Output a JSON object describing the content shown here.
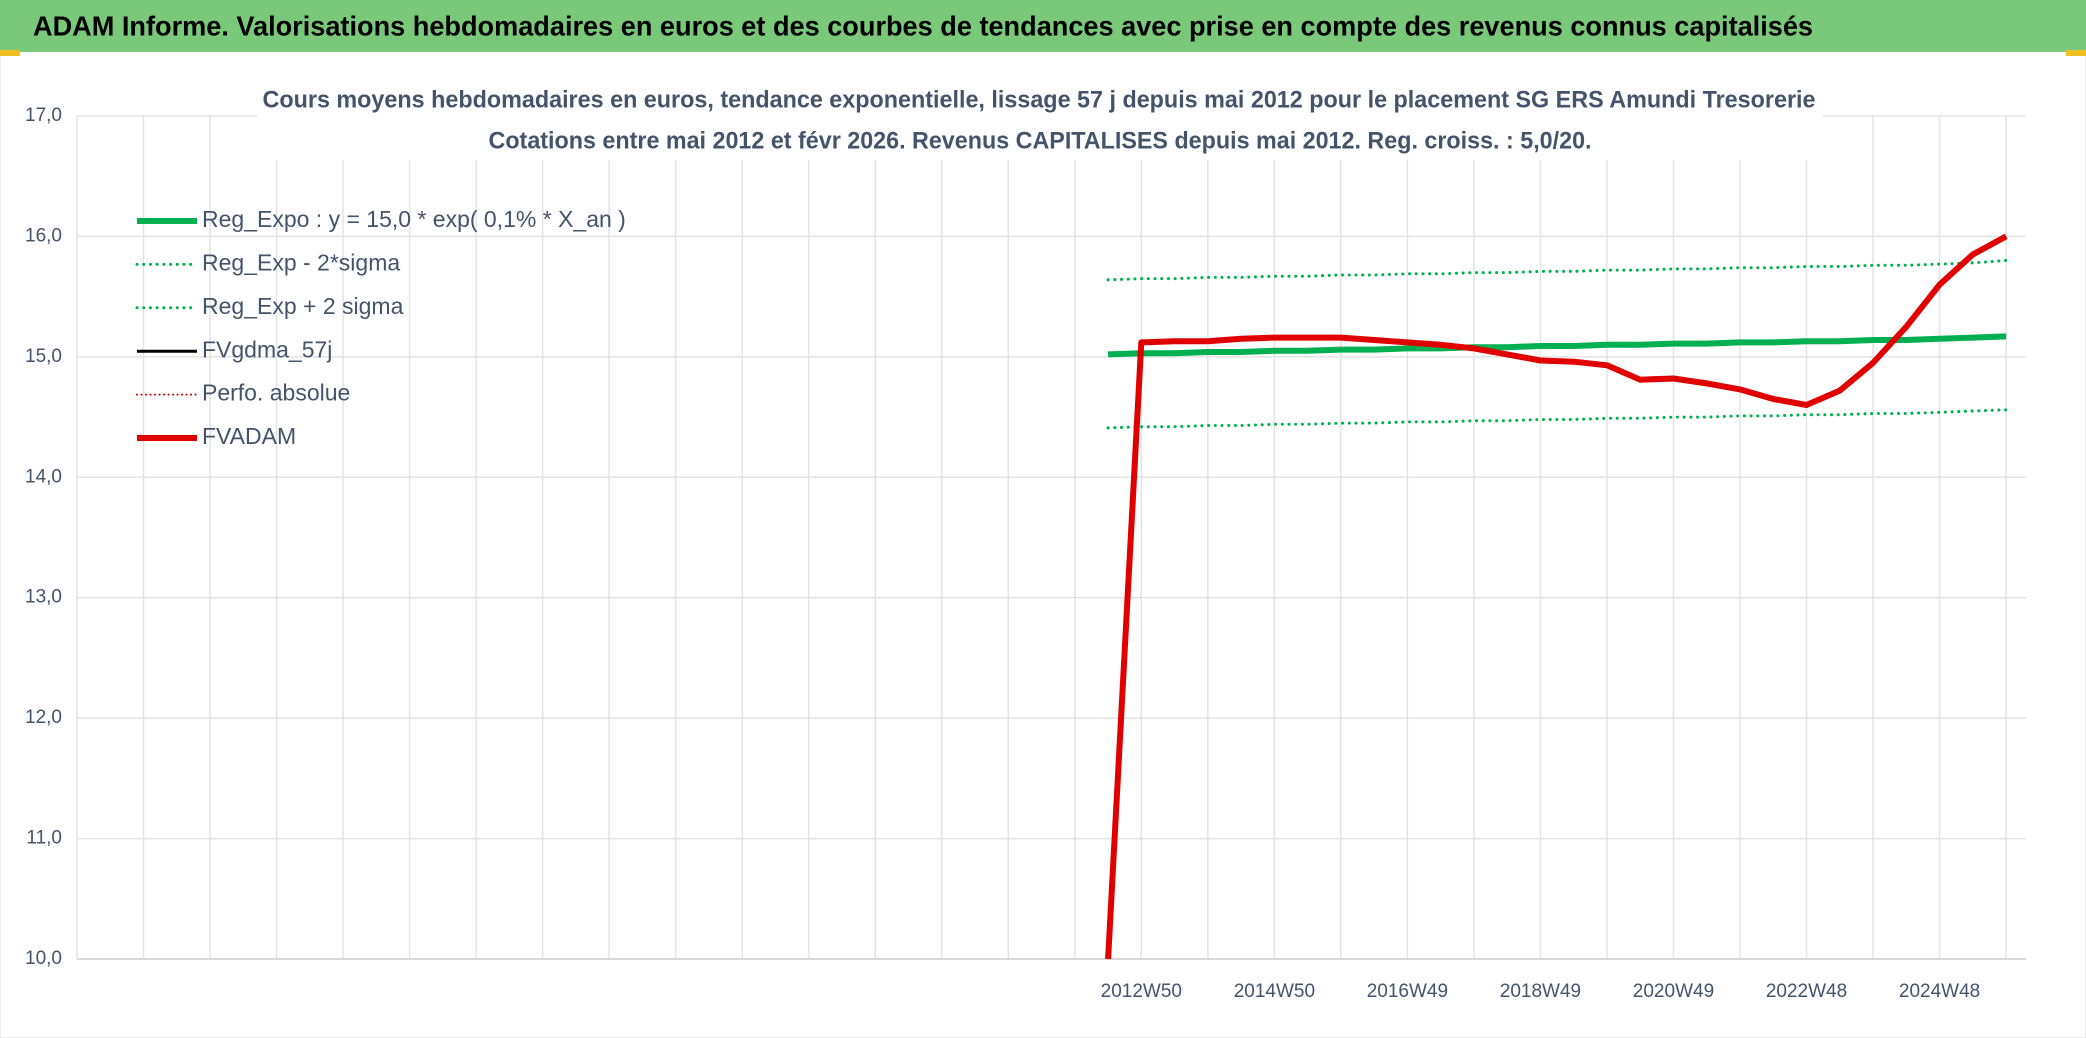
{
  "header": {
    "title": "ADAM Informe. Valorisations hebdomadaires en euros et des courbes de tendances avec prise en compte des revenus connus capitalisés"
  },
  "chart_data": {
    "type": "line",
    "title": "Cours moyens hebdomadaires en euros, tendance exponentielle, lissage 57 j depuis mai 2012 pour le placement SG ERS Amundi Tresorerie",
    "subtitle": "Cotations entre mai 2012 et févr 2026. Revenus CAPITALISES depuis mai 2012. Reg. croiss. : 5,0/20.",
    "categories": [
      null,
      null,
      null,
      null,
      null,
      null,
      null,
      null,
      null,
      null,
      null,
      null,
      null,
      null,
      null,
      null,
      null,
      null,
      null,
      null,
      null,
      null,
      null,
      null,
      null,
      null,
      null,
      null,
      null,
      null,
      null,
      null,
      "2012W50",
      null,
      null,
      null,
      "2014W50",
      null,
      null,
      null,
      "2016W49",
      null,
      null,
      null,
      "2018W49",
      null,
      null,
      null,
      "2020W49",
      null,
      null,
      null,
      "2022W48",
      null,
      null,
      null,
      "2024W48",
      null,
      null
    ],
    "ylim": [
      10,
      17
    ],
    "yticks": [
      {
        "value": 10,
        "label": "10,0"
      },
      {
        "value": 11,
        "label": "11,0"
      },
      {
        "value": 12,
        "label": "12,0"
      },
      {
        "value": 13,
        "label": "13,0"
      },
      {
        "value": 14,
        "label": "14,0"
      },
      {
        "value": 15,
        "label": "15,0"
      },
      {
        "value": 16,
        "label": "16,0"
      },
      {
        "value": 17,
        "label": "17,0"
      }
    ],
    "grid": true,
    "legend": "top-left",
    "series": [
      {
        "name": "Reg_Expo : y = 15,0 * exp( 0,1% *  X_an )",
        "color": "#00b050",
        "style": "solid",
        "width": 6,
        "values": [
          null,
          null,
          null,
          null,
          null,
          null,
          null,
          null,
          null,
          null,
          null,
          null,
          null,
          null,
          null,
          null,
          null,
          null,
          null,
          null,
          null,
          null,
          null,
          null,
          null,
          null,
          null,
          null,
          null,
          null,
          null,
          15.02,
          15.03,
          15.03,
          15.04,
          15.04,
          15.05,
          15.05,
          15.06,
          15.06,
          15.07,
          15.07,
          15.08,
          15.08,
          15.09,
          15.09,
          15.1,
          15.1,
          15.11,
          15.11,
          15.12,
          15.12,
          15.13,
          15.13,
          15.14,
          15.14,
          15.15,
          15.16,
          15.17
        ]
      },
      {
        "name": "Reg_Exp - 2*sigma",
        "color": "#00b050",
        "style": "dotted",
        "width": 3,
        "values": [
          null,
          null,
          null,
          null,
          null,
          null,
          null,
          null,
          null,
          null,
          null,
          null,
          null,
          null,
          null,
          null,
          null,
          null,
          null,
          null,
          null,
          null,
          null,
          null,
          null,
          null,
          null,
          null,
          null,
          null,
          null,
          14.41,
          14.42,
          14.42,
          14.43,
          14.43,
          14.44,
          14.44,
          14.45,
          14.45,
          14.46,
          14.46,
          14.47,
          14.47,
          14.48,
          14.48,
          14.49,
          14.49,
          14.5,
          14.5,
          14.51,
          14.51,
          14.52,
          14.52,
          14.53,
          14.53,
          14.54,
          14.55,
          14.56
        ]
      },
      {
        "name": "Reg_Exp + 2 sigma",
        "color": "#00b050",
        "style": "dotted",
        "width": 3,
        "values": [
          null,
          null,
          null,
          null,
          null,
          null,
          null,
          null,
          null,
          null,
          null,
          null,
          null,
          null,
          null,
          null,
          null,
          null,
          null,
          null,
          null,
          null,
          null,
          null,
          null,
          null,
          null,
          null,
          null,
          null,
          null,
          15.64,
          15.65,
          15.65,
          15.66,
          15.66,
          15.67,
          15.67,
          15.68,
          15.68,
          15.69,
          15.69,
          15.7,
          15.7,
          15.71,
          15.71,
          15.72,
          15.72,
          15.73,
          15.73,
          15.74,
          15.74,
          15.75,
          15.75,
          15.76,
          15.76,
          15.77,
          15.78,
          15.8
        ]
      },
      {
        "name": "FVgdma_57j",
        "color": "#000000",
        "style": "solid",
        "width": 3,
        "values": [
          null,
          null,
          null,
          null,
          null,
          null,
          null,
          null,
          null,
          null,
          null,
          null,
          null,
          null,
          null,
          null,
          null,
          null,
          null,
          null,
          null,
          null,
          null,
          null,
          null,
          null,
          null,
          null,
          null,
          null,
          null,
          null,
          15.12,
          15.13,
          15.13,
          15.15,
          15.16,
          15.16,
          15.16,
          15.14,
          15.12,
          15.1,
          15.07,
          15.02,
          14.97,
          14.96,
          14.93,
          14.81,
          14.82,
          14.78,
          14.73,
          14.65,
          14.61,
          14.72,
          14.95,
          15.25,
          15.6,
          15.85,
          16.0
        ]
      },
      {
        "name": "Perfo. absolue",
        "color": "#c00000",
        "style": "dotted",
        "width": 2,
        "values": [
          null,
          null,
          null,
          null,
          null,
          null,
          null,
          null,
          null,
          null,
          null,
          null,
          null,
          null,
          null,
          null,
          null,
          null,
          null,
          null,
          null,
          null,
          null,
          null,
          null,
          null,
          null,
          null,
          null,
          null,
          null,
          null,
          null,
          null,
          null,
          null,
          null,
          null,
          null,
          null,
          null,
          null,
          null,
          null,
          null,
          null,
          null,
          null,
          null,
          null,
          null,
          null,
          null,
          null,
          null,
          null,
          null,
          null,
          null
        ]
      },
      {
        "name": "FVADAM",
        "color": "#e00000",
        "style": "solid",
        "width": 6,
        "values": [
          null,
          null,
          null,
          null,
          null,
          null,
          null,
          null,
          null,
          null,
          null,
          null,
          null,
          null,
          null,
          null,
          null,
          null,
          null,
          null,
          null,
          null,
          null,
          null,
          null,
          null,
          null,
          null,
          null,
          null,
          null,
          10.0,
          15.12,
          15.13,
          15.13,
          15.15,
          15.16,
          15.16,
          15.16,
          15.14,
          15.12,
          15.1,
          15.07,
          15.02,
          14.97,
          14.96,
          14.93,
          14.81,
          14.82,
          14.78,
          14.73,
          14.65,
          14.6,
          14.72,
          14.95,
          15.25,
          15.6,
          15.85,
          16.0
        ]
      }
    ]
  }
}
